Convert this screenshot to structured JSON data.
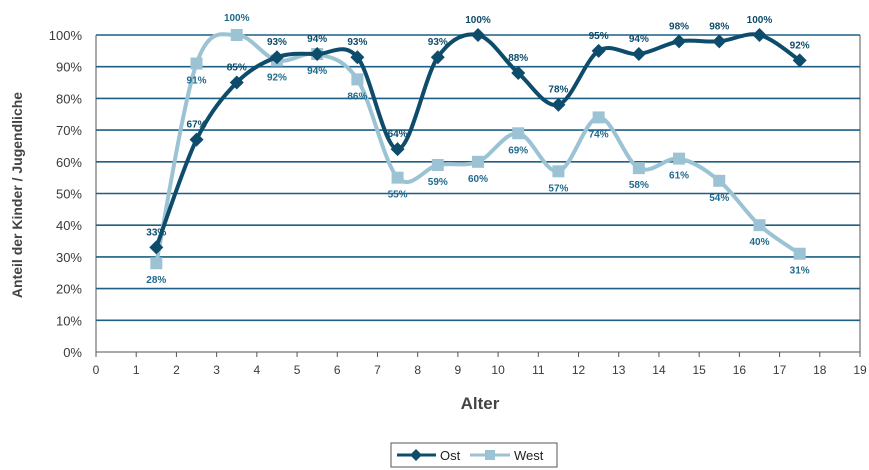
{
  "chart_data": {
    "type": "line",
    "xlabel": "Alter",
    "ylabel": "Anteil der Kinder / Jugendliche",
    "xlim": [
      0,
      19
    ],
    "ylim": [
      0,
      100
    ],
    "x_ticks": [
      "0",
      "1",
      "2",
      "3",
      "4",
      "5",
      "6",
      "7",
      "8",
      "9",
      "10",
      "11",
      "12",
      "13",
      "14",
      "15",
      "16",
      "17",
      "18",
      "19"
    ],
    "y_ticks": [
      "0%",
      "10%",
      "20%",
      "30%",
      "40%",
      "50%",
      "60%",
      "70%",
      "80%",
      "90%",
      "100%"
    ],
    "grid": true,
    "legend_position": "bottom",
    "x": [
      1.5,
      2.5,
      3.5,
      4.5,
      5.5,
      6.5,
      7.5,
      8.5,
      9.5,
      10.5,
      11.5,
      12.5,
      13.5,
      14.5,
      15.5,
      16.5,
      17.5
    ],
    "series": [
      {
        "name": "Ost",
        "color": "#0e4c6b",
        "marker": "diamond",
        "values": [
          33,
          67,
          85,
          93,
          94,
          93,
          64,
          93,
          100,
          88,
          78,
          95,
          94,
          98,
          98,
          100,
          92
        ],
        "labels": [
          "33%",
          "67%",
          "85%",
          "93%",
          "94%",
          "93%",
          "64%",
          "93%",
          "100%",
          "88%",
          "78%",
          "95%",
          "94%",
          "98%",
          "98%",
          "100%",
          "92%"
        ]
      },
      {
        "name": "West",
        "color": "#9cc3d3",
        "marker": "square",
        "values": [
          28,
          91,
          100,
          92,
          94,
          86,
          55,
          59,
          60,
          69,
          57,
          74,
          58,
          61,
          54,
          40,
          31
        ],
        "labels": [
          "28%",
          "91%",
          "100%",
          "92%",
          "94%",
          "86%",
          "55%",
          "59%",
          "60%",
          "69%",
          "57%",
          "74%",
          "58%",
          "61%",
          "54%",
          "40%",
          "31%"
        ]
      }
    ]
  }
}
